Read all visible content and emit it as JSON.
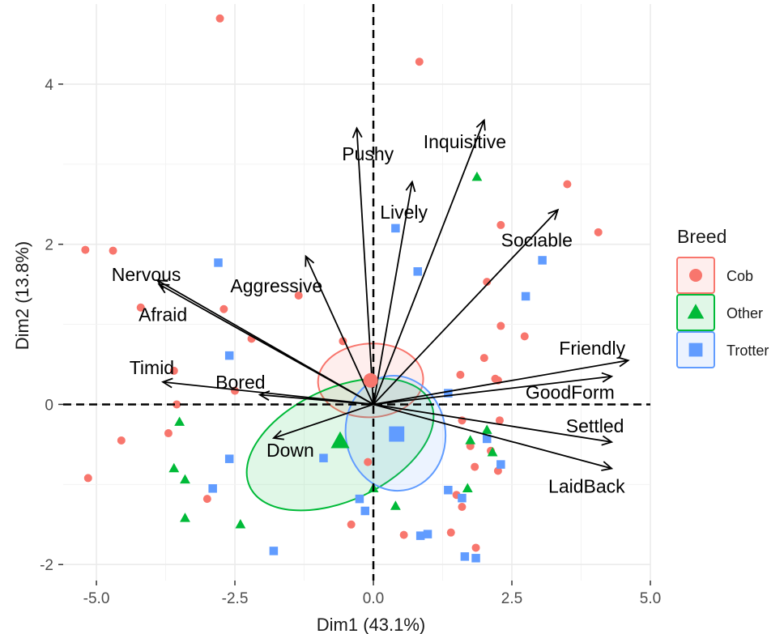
{
  "chart_data": {
    "type": "scatter",
    "subtype": "pca-biplot",
    "xlabel": "Dim1 (43.1%)",
    "ylabel": "Dim2 (13.8%)",
    "xlim": [
      -5.6,
      5.0
    ],
    "ylim": [
      -2.2,
      5.0
    ],
    "x_ticks": [
      -5.0,
      -2.5,
      0.0,
      2.5,
      5.0
    ],
    "x_tick_labels": [
      "-5.0",
      "-2.5",
      "0.0",
      "2.5",
      "5.0"
    ],
    "y_ticks": [
      -2,
      0,
      2,
      4
    ],
    "y_tick_labels": [
      "-2",
      "0",
      "2",
      "4"
    ],
    "grid": true,
    "legend": {
      "title": "Breed",
      "placement": "right"
    },
    "series": [
      {
        "name": "Cob",
        "shape": "circle",
        "color": "#F8766D",
        "points": [
          [
            -2.77,
            4.82
          ],
          [
            0.83,
            4.28
          ],
          [
            -5.2,
            1.93
          ],
          [
            -4.7,
            1.92
          ],
          [
            -4.2,
            1.21
          ],
          [
            -2.7,
            1.19
          ],
          [
            -1.35,
            1.36
          ],
          [
            -3.6,
            0.42
          ],
          [
            -2.5,
            0.17
          ],
          [
            -2.2,
            0.82
          ],
          [
            -0.55,
            0.79
          ],
          [
            -0.05,
            0.27
          ],
          [
            -3.55,
            0.0
          ],
          [
            -3.7,
            -0.36
          ],
          [
            -4.55,
            -0.45
          ],
          [
            -5.15,
            -0.92
          ],
          [
            -3.0,
            -1.18
          ],
          [
            -0.4,
            -1.5
          ],
          [
            -0.1,
            -0.72
          ],
          [
            0.55,
            -1.63
          ],
          [
            1.4,
            -1.6
          ],
          [
            1.5,
            -1.13
          ],
          [
            1.6,
            -1.28
          ],
          [
            1.85,
            -1.79
          ],
          [
            1.75,
            -0.52
          ],
          [
            1.6,
            -0.2
          ],
          [
            1.83,
            -0.78
          ],
          [
            2.12,
            -0.58
          ],
          [
            2.25,
            -0.83
          ],
          [
            2.28,
            -0.2
          ],
          [
            2.2,
            0.32
          ],
          [
            2.25,
            0.3
          ],
          [
            2.0,
            0.58
          ],
          [
            2.3,
            0.98
          ],
          [
            2.73,
            0.85
          ],
          [
            2.05,
            1.53
          ],
          [
            2.3,
            2.24
          ],
          [
            3.5,
            2.75
          ],
          [
            4.06,
            2.15
          ],
          [
            1.57,
            0.37
          ]
        ]
      },
      {
        "name": "Other",
        "shape": "triangle",
        "color": "#00BA38",
        "points": [
          [
            1.87,
            2.84
          ],
          [
            -3.5,
            -0.22
          ],
          [
            -3.6,
            -0.8
          ],
          [
            -3.4,
            -0.94
          ],
          [
            -3.4,
            -1.42
          ],
          [
            -2.4,
            -1.5
          ],
          [
            0.4,
            -1.27
          ],
          [
            1.75,
            -0.45
          ],
          [
            2.15,
            -0.6
          ],
          [
            1.7,
            -1.05
          ],
          [
            2.05,
            -0.32
          ],
          [
            0.0,
            -1.05
          ]
        ]
      },
      {
        "name": "Trotter",
        "shape": "square",
        "color": "#619CFF",
        "points": [
          [
            -2.8,
            1.77
          ],
          [
            -2.6,
            0.61
          ],
          [
            -2.6,
            -0.68
          ],
          [
            -2.9,
            -1.05
          ],
          [
            -1.8,
            -1.83
          ],
          [
            -0.9,
            -0.67
          ],
          [
            -0.25,
            -1.18
          ],
          [
            -0.15,
            -1.33
          ],
          [
            0.8,
            1.66
          ],
          [
            0.4,
            2.2
          ],
          [
            0.85,
            -1.64
          ],
          [
            0.98,
            -1.62
          ],
          [
            1.35,
            -1.07
          ],
          [
            1.35,
            0.14
          ],
          [
            1.65,
            -1.9
          ],
          [
            1.85,
            -1.92
          ],
          [
            2.05,
            -0.43
          ],
          [
            2.3,
            -0.75
          ],
          [
            2.75,
            1.35
          ],
          [
            3.05,
            1.8
          ],
          [
            1.6,
            -1.17
          ]
        ]
      }
    ],
    "group_means": [
      {
        "name": "Cob",
        "x": -0.05,
        "y": 0.3
      },
      {
        "name": "Other",
        "x": -0.6,
        "y": -0.46
      },
      {
        "name": "Trotter",
        "x": 0.42,
        "y": -0.37
      }
    ],
    "ellipses": [
      {
        "name": "Cob",
        "cx": -0.05,
        "cy": 0.3,
        "rx": 0.95,
        "ry": 0.46,
        "angle_deg": 3
      },
      {
        "name": "Other",
        "cx": -0.6,
        "cy": -0.5,
        "rx": 1.8,
        "ry": 0.7,
        "angle_deg": 25
      },
      {
        "name": "Trotter",
        "cx": 0.4,
        "cy": -0.36,
        "rx": 0.9,
        "ry": 0.72,
        "angle_deg": 8
      }
    ],
    "variables": [
      {
        "label": "Pushy",
        "x": -0.3,
        "y": 3.45
      },
      {
        "label": "Inquisitive",
        "x": 2.0,
        "y": 3.55
      },
      {
        "label": "Lively",
        "x": 0.7,
        "y": 2.78
      },
      {
        "label": "Sociable",
        "x": 3.33,
        "y": 2.43
      },
      {
        "label": "Nervous",
        "x": -3.9,
        "y": 1.55
      },
      {
        "label": "Aggressive",
        "x": -1.22,
        "y": 1.85
      },
      {
        "label": "Afraid",
        "x": -3.87,
        "y": 1.5
      },
      {
        "label": "Timid",
        "x": -3.8,
        "y": 0.28
      },
      {
        "label": "Bored",
        "x": -2.05,
        "y": 0.12
      },
      {
        "label": "Friendly",
        "x": 4.6,
        "y": 0.55
      },
      {
        "label": "GoodForm",
        "x": 4.3,
        "y": 0.35
      },
      {
        "label": "Settled",
        "x": 4.3,
        "y": -0.47
      },
      {
        "label": "LaidBack",
        "x": 4.3,
        "y": -0.8
      },
      {
        "label": "Down",
        "x": -1.8,
        "y": -0.42
      }
    ]
  },
  "colors": {
    "cob": "#F8766D",
    "other": "#00BA38",
    "trotter": "#619CFF",
    "grid": "#EBEBEB",
    "arrow": "#000000"
  }
}
